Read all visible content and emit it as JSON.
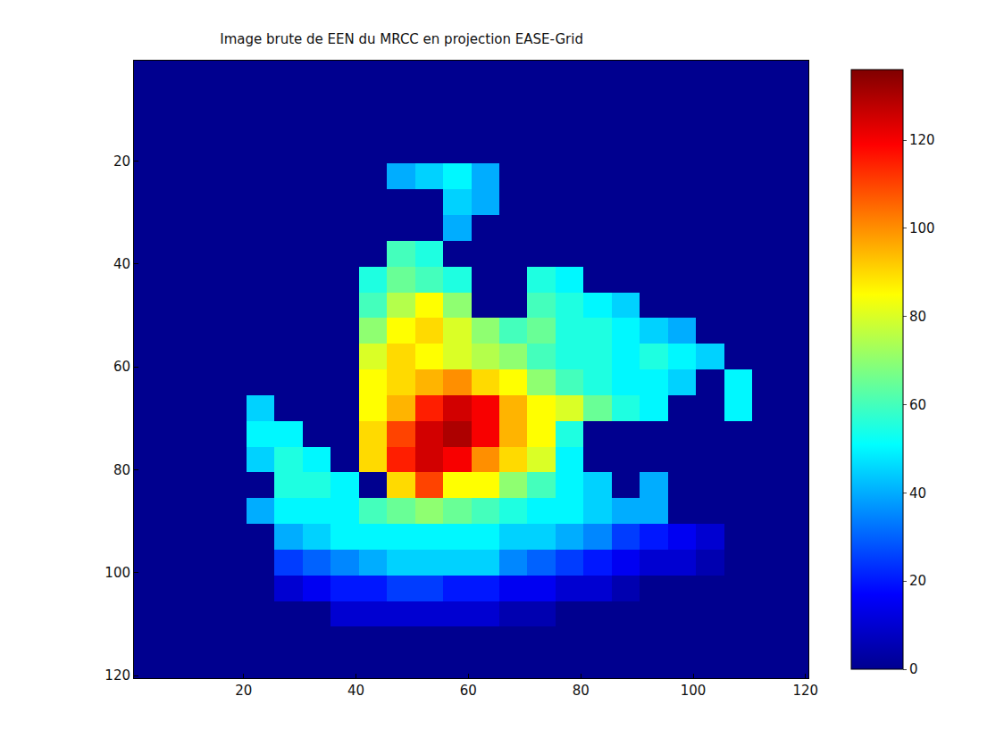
{
  "chart_data": {
    "type": "heatmap",
    "title": "Image brute de EEN du MRCC en projection EASE-Grid",
    "x": [
      3,
      8,
      13,
      18,
      23,
      28,
      33,
      38,
      43,
      48,
      53,
      58,
      63,
      68,
      73,
      78,
      83,
      88,
      93,
      98,
      103,
      108,
      113,
      118
    ],
    "y": [
      3,
      8,
      13,
      18,
      23,
      28,
      33,
      38,
      43,
      48,
      53,
      58,
      63,
      68,
      73,
      78,
      83,
      88,
      93,
      98,
      103,
      108,
      113,
      118
    ],
    "cells": [
      [
        0,
        0,
        0,
        0,
        0,
        0,
        0,
        0,
        0,
        0,
        0,
        0,
        0,
        0,
        0,
        0,
        0,
        0,
        0,
        0,
        0,
        0,
        0,
        0
      ],
      [
        0,
        0,
        0,
        0,
        0,
        0,
        0,
        0,
        0,
        0,
        0,
        0,
        0,
        0,
        0,
        0,
        0,
        0,
        0,
        0,
        0,
        0,
        0,
        0
      ],
      [
        0,
        0,
        0,
        0,
        0,
        0,
        0,
        0,
        0,
        0,
        0,
        0,
        0,
        0,
        0,
        0,
        0,
        0,
        0,
        0,
        0,
        0,
        0,
        0
      ],
      [
        0,
        0,
        0,
        0,
        0,
        0,
        0,
        0,
        0,
        0,
        0,
        0,
        0,
        0,
        0,
        0,
        0,
        0,
        0,
        0,
        0,
        0,
        0,
        0
      ],
      [
        0,
        0,
        0,
        0,
        0,
        0,
        0,
        0,
        0,
        40,
        45,
        50,
        40,
        0,
        0,
        0,
        0,
        0,
        0,
        0,
        0,
        0,
        0,
        0
      ],
      [
        0,
        0,
        0,
        0,
        0,
        0,
        0,
        0,
        0,
        0,
        0,
        45,
        40,
        0,
        0,
        0,
        0,
        0,
        0,
        0,
        0,
        0,
        0,
        0
      ],
      [
        0,
        0,
        0,
        0,
        0,
        0,
        0,
        0,
        0,
        0,
        0,
        40,
        0,
        0,
        0,
        0,
        0,
        0,
        0,
        0,
        0,
        0,
        0,
        0
      ],
      [
        0,
        0,
        0,
        0,
        0,
        0,
        0,
        0,
        0,
        60,
        55,
        0,
        0,
        0,
        0,
        0,
        0,
        0,
        0,
        0,
        0,
        0,
        0,
        0
      ],
      [
        0,
        0,
        0,
        0,
        0,
        0,
        0,
        0,
        55,
        65,
        60,
        55,
        0,
        0,
        55,
        50,
        0,
        0,
        0,
        0,
        0,
        0,
        0,
        0
      ],
      [
        0,
        0,
        0,
        0,
        0,
        0,
        0,
        0,
        60,
        75,
        85,
        70,
        0,
        0,
        60,
        55,
        50,
        45,
        0,
        0,
        0,
        0,
        0,
        0
      ],
      [
        0,
        0,
        0,
        0,
        0,
        0,
        0,
        0,
        70,
        85,
        90,
        80,
        70,
        60,
        65,
        55,
        55,
        50,
        45,
        40,
        0,
        0,
        0,
        0
      ],
      [
        0,
        0,
        0,
        0,
        0,
        0,
        0,
        0,
        80,
        90,
        85,
        80,
        75,
        70,
        60,
        55,
        55,
        50,
        55,
        50,
        45,
        0,
        0,
        0
      ],
      [
        0,
        0,
        0,
        0,
        0,
        0,
        0,
        0,
        85,
        90,
        95,
        100,
        90,
        85,
        70,
        60,
        55,
        50,
        50,
        45,
        0,
        50,
        0,
        0
      ],
      [
        0,
        0,
        0,
        0,
        45,
        0,
        0,
        0,
        85,
        95,
        115,
        125,
        120,
        95,
        85,
        80,
        65,
        55,
        50,
        0,
        0,
        50,
        0,
        0
      ],
      [
        0,
        0,
        0,
        0,
        50,
        50,
        0,
        0,
        90,
        110,
        125,
        130,
        120,
        95,
        85,
        55,
        0,
        0,
        0,
        0,
        0,
        0,
        0,
        0
      ],
      [
        0,
        0,
        0,
        0,
        45,
        55,
        50,
        0,
        90,
        115,
        125,
        120,
        100,
        90,
        80,
        50,
        0,
        0,
        0,
        0,
        0,
        0,
        0,
        0
      ],
      [
        0,
        0,
        0,
        0,
        0,
        55,
        55,
        50,
        0,
        90,
        110,
        85,
        85,
        70,
        60,
        50,
        45,
        0,
        40,
        0,
        0,
        0,
        0,
        0
      ],
      [
        0,
        0,
        0,
        0,
        40,
        50,
        50,
        50,
        60,
        65,
        70,
        65,
        60,
        55,
        50,
        50,
        45,
        40,
        40,
        0,
        0,
        0,
        0,
        0
      ],
      [
        0,
        0,
        0,
        0,
        0,
        40,
        45,
        50,
        50,
        50,
        50,
        50,
        50,
        45,
        45,
        40,
        35,
        25,
        20,
        15,
        10,
        0,
        0,
        0
      ],
      [
        0,
        0,
        0,
        0,
        0,
        25,
        30,
        35,
        40,
        45,
        45,
        45,
        45,
        35,
        30,
        25,
        20,
        15,
        10,
        10,
        5,
        0,
        0,
        0
      ],
      [
        0,
        0,
        0,
        0,
        0,
        10,
        15,
        20,
        20,
        25,
        25,
        20,
        20,
        15,
        15,
        10,
        10,
        5,
        0,
        0,
        0,
        0,
        0,
        0
      ],
      [
        0,
        0,
        0,
        0,
        0,
        0,
        0,
        10,
        10,
        10,
        10,
        10,
        10,
        5,
        5,
        0,
        0,
        0,
        0,
        0,
        0,
        0,
        0,
        0
      ],
      [
        0,
        0,
        0,
        0,
        0,
        0,
        0,
        0,
        0,
        0,
        0,
        0,
        0,
        0,
        0,
        0,
        0,
        0,
        0,
        0,
        0,
        0,
        0,
        0
      ],
      [
        0,
        0,
        0,
        0,
        0,
        0,
        0,
        0,
        0,
        0,
        0,
        0,
        0,
        0,
        0,
        0,
        0,
        0,
        0,
        0,
        0,
        0,
        0,
        0
      ]
    ],
    "xlim": [
      0.5,
      120.5
    ],
    "ylim": [
      0.5,
      120.5
    ],
    "xticks": [
      20,
      40,
      60,
      80,
      100,
      120
    ],
    "yticks": [
      20,
      40,
      60,
      80,
      100,
      120
    ],
    "zlim": [
      0,
      136
    ],
    "zticks": [
      0,
      20,
      40,
      60,
      80,
      100,
      120
    ]
  }
}
